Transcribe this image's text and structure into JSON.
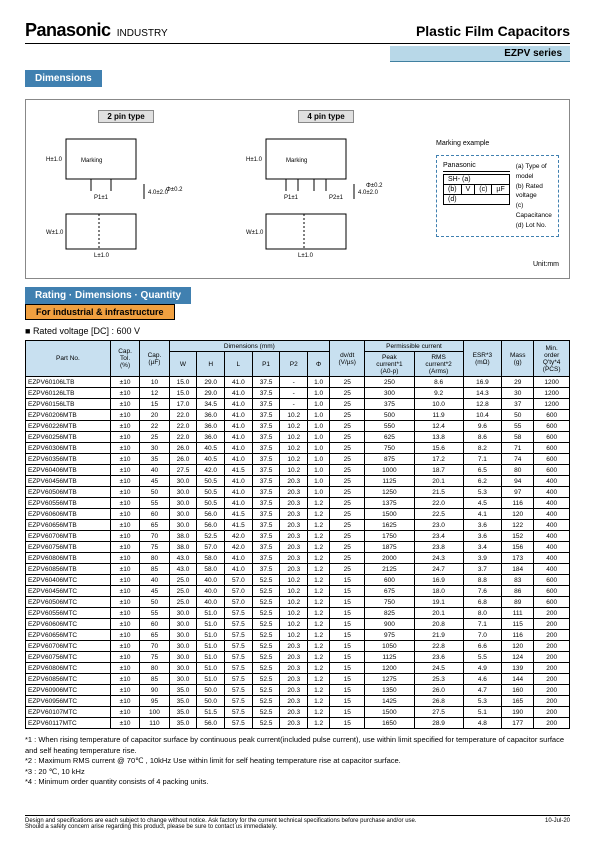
{
  "brand": "Panasonic",
  "brandSub": "INDUSTRY",
  "title": "Plastic Film Capacitors",
  "series": "EZPV series",
  "secDimensions": "Dimensions",
  "pin2": "2 pin type",
  "pin4": "4 pin type",
  "marking": "Marking",
  "markingExample": "Marking example",
  "markingBrand": "Panasonic",
  "markingSH": "SH-",
  "markingA": "(a)",
  "markingB": "(b)",
  "markingV": "V",
  "markingC": "(c)",
  "markingUF": "µF",
  "markingD": "(d)",
  "legendA": "(a) Type of model",
  "legendB": "(b) Rated voltage",
  "legendC": "(c) Capacitance",
  "legendD": "(d) Lot No.",
  "unitMm": "Unit:mm",
  "secRating": "Rating · Dimensions · Quantity",
  "subIndustrial": "For industrial & infrastructure",
  "ratedVoltage": "Rated voltage [DC] : 600 V",
  "headers": {
    "partNo": "Part No.",
    "capTol": "Cap.\nTol.\n(%)",
    "cap": "Cap.\n(µF)",
    "dims": "Dimensions (mm)",
    "w": "W",
    "h": "H",
    "l": "L",
    "p1": "P1",
    "p2": "P2",
    "phi": "Φ",
    "dvdt": "dv/dt\n(V/µs)",
    "perm": "Permissible current",
    "peak": "Peak\ncurrent*1\n(A0-p)",
    "rms": "RMS\ncurrent*2\n(Arms)",
    "esr": "ESR*3\n(mΩ)",
    "mass": "Mass\n(g)",
    "qty": "Min.\norder\nQ'ty*4\n(PCS)"
  },
  "rows": [
    [
      "EZPV60106LTB",
      "±10",
      "10",
      "15.0",
      "29.0",
      "41.0",
      "37.5",
      "-",
      "1.0",
      "25",
      "250",
      "8.6",
      "16.9",
      "29",
      "1200"
    ],
    [
      "EZPV60126LTB",
      "±10",
      "12",
      "15.0",
      "29.0",
      "41.0",
      "37.5",
      "-",
      "1.0",
      "25",
      "300",
      "9.2",
      "14.3",
      "30",
      "1200"
    ],
    [
      "EZPV60156LTB",
      "±10",
      "15",
      "17.0",
      "34.5",
      "41.0",
      "37.5",
      "-",
      "1.0",
      "25",
      "375",
      "10.0",
      "12.8",
      "37",
      "1200"
    ],
    [
      "EZPV60206MTB",
      "±10",
      "20",
      "22.0",
      "36.0",
      "41.0",
      "37.5",
      "10.2",
      "1.0",
      "25",
      "500",
      "11.9",
      "10.4",
      "50",
      "600"
    ],
    [
      "EZPV60226MTB",
      "±10",
      "22",
      "22.0",
      "36.0",
      "41.0",
      "37.5",
      "10.2",
      "1.0",
      "25",
      "550",
      "12.4",
      "9.6",
      "55",
      "600"
    ],
    [
      "EZPV60256MTB",
      "±10",
      "25",
      "22.0",
      "36.0",
      "41.0",
      "37.5",
      "10.2",
      "1.0",
      "25",
      "625",
      "13.8",
      "8.6",
      "58",
      "600"
    ],
    [
      "EZPV60306MTB",
      "±10",
      "30",
      "26.0",
      "40.5",
      "41.0",
      "37.5",
      "10.2",
      "1.0",
      "25",
      "750",
      "15.6",
      "8.2",
      "71",
      "600"
    ],
    [
      "EZPV60356MTB",
      "±10",
      "35",
      "26.0",
      "40.5",
      "41.0",
      "37.5",
      "10.2",
      "1.0",
      "25",
      "875",
      "17.2",
      "7.1",
      "74",
      "600"
    ],
    [
      "EZPV60406MTB",
      "±10",
      "40",
      "27.5",
      "42.0",
      "41.5",
      "37.5",
      "10.2",
      "1.0",
      "25",
      "1000",
      "18.7",
      "6.5",
      "80",
      "600"
    ],
    [
      "EZPV60456MTB",
      "±10",
      "45",
      "30.0",
      "50.5",
      "41.0",
      "37.5",
      "20.3",
      "1.0",
      "25",
      "1125",
      "20.1",
      "6.2",
      "94",
      "400"
    ],
    [
      "EZPV60506MTB",
      "±10",
      "50",
      "30.0",
      "50.5",
      "41.0",
      "37.5",
      "20.3",
      "1.0",
      "25",
      "1250",
      "21.5",
      "5.3",
      "97",
      "400"
    ],
    [
      "EZPV60556MTB",
      "±10",
      "55",
      "30.0",
      "50.5",
      "41.0",
      "37.5",
      "20.3",
      "1.2",
      "25",
      "1375",
      "22.0",
      "4.5",
      "116",
      "400"
    ],
    [
      "EZPV60606MTB",
      "±10",
      "60",
      "30.0",
      "56.0",
      "41.5",
      "37.5",
      "20.3",
      "1.2",
      "25",
      "1500",
      "22.5",
      "4.1",
      "120",
      "400"
    ],
    [
      "EZPV60656MTB",
      "±10",
      "65",
      "30.0",
      "56.0",
      "41.5",
      "37.5",
      "20.3",
      "1.2",
      "25",
      "1625",
      "23.0",
      "3.6",
      "122",
      "400"
    ],
    [
      "EZPV60706MTB",
      "±10",
      "70",
      "38.0",
      "52.5",
      "42.0",
      "37.5",
      "20.3",
      "1.2",
      "25",
      "1750",
      "23.4",
      "3.6",
      "152",
      "400"
    ],
    [
      "EZPV60756MTB",
      "±10",
      "75",
      "38.0",
      "57.0",
      "42.0",
      "37.5",
      "20.3",
      "1.2",
      "25",
      "1875",
      "23.8",
      "3.4",
      "156",
      "400"
    ],
    [
      "EZPV60806MTB",
      "±10",
      "80",
      "43.0",
      "58.0",
      "41.0",
      "37.5",
      "20.3",
      "1.2",
      "25",
      "2000",
      "24.3",
      "3.9",
      "173",
      "400"
    ],
    [
      "EZPV60856MTB",
      "±10",
      "85",
      "43.0",
      "58.0",
      "41.0",
      "37.5",
      "20.3",
      "1.2",
      "25",
      "2125",
      "24.7",
      "3.7",
      "184",
      "400"
    ],
    [
      "EZPV60406MTC",
      "±10",
      "40",
      "25.0",
      "40.0",
      "57.0",
      "52.5",
      "10.2",
      "1.2",
      "15",
      "600",
      "16.9",
      "8.8",
      "83",
      "600"
    ],
    [
      "EZPV60456MTC",
      "±10",
      "45",
      "25.0",
      "40.0",
      "57.0",
      "52.5",
      "10.2",
      "1.2",
      "15",
      "675",
      "18.0",
      "7.6",
      "86",
      "600"
    ],
    [
      "EZPV60506MTC",
      "±10",
      "50",
      "25.0",
      "40.0",
      "57.0",
      "52.5",
      "10.2",
      "1.2",
      "15",
      "750",
      "19.1",
      "6.8",
      "89",
      "600"
    ],
    [
      "EZPV60556MTC",
      "±10",
      "55",
      "30.0",
      "51.0",
      "57.5",
      "52.5",
      "10.2",
      "1.2",
      "15",
      "825",
      "20.1",
      "8.0",
      "111",
      "200"
    ],
    [
      "EZPV60606MTC",
      "±10",
      "60",
      "30.0",
      "51.0",
      "57.5",
      "52.5",
      "10.2",
      "1.2",
      "15",
      "900",
      "20.8",
      "7.1",
      "115",
      "200"
    ],
    [
      "EZPV60656MTC",
      "±10",
      "65",
      "30.0",
      "51.0",
      "57.5",
      "52.5",
      "10.2",
      "1.2",
      "15",
      "975",
      "21.9",
      "7.0",
      "116",
      "200"
    ],
    [
      "EZPV60706MTC",
      "±10",
      "70",
      "30.0",
      "51.0",
      "57.5",
      "52.5",
      "20.3",
      "1.2",
      "15",
      "1050",
      "22.8",
      "6.6",
      "120",
      "200"
    ],
    [
      "EZPV60756MTC",
      "±10",
      "75",
      "30.0",
      "51.0",
      "57.5",
      "52.5",
      "20.3",
      "1.2",
      "15",
      "1125",
      "23.6",
      "5.5",
      "124",
      "200"
    ],
    [
      "EZPV60806MTC",
      "±10",
      "80",
      "30.0",
      "51.0",
      "57.5",
      "52.5",
      "20.3",
      "1.2",
      "15",
      "1200",
      "24.5",
      "4.9",
      "139",
      "200"
    ],
    [
      "EZPV60856MTC",
      "±10",
      "85",
      "30.0",
      "51.0",
      "57.5",
      "52.5",
      "20.3",
      "1.2",
      "15",
      "1275",
      "25.3",
      "4.6",
      "144",
      "200"
    ],
    [
      "EZPV60906MTC",
      "±10",
      "90",
      "35.0",
      "50.0",
      "57.5",
      "52.5",
      "20.3",
      "1.2",
      "15",
      "1350",
      "26.0",
      "4.7",
      "160",
      "200"
    ],
    [
      "EZPV60956MTC",
      "±10",
      "95",
      "35.0",
      "50.0",
      "57.5",
      "52.5",
      "20.3",
      "1.2",
      "15",
      "1425",
      "26.8",
      "5.3",
      "165",
      "200"
    ],
    [
      "EZPV60107MTC",
      "±10",
      "100",
      "35.0",
      "51.5",
      "57.5",
      "52.5",
      "20.3",
      "1.2",
      "15",
      "1500",
      "27.5",
      "5.1",
      "190",
      "200"
    ],
    [
      "EZPV60117MTC",
      "±10",
      "110",
      "35.0",
      "56.0",
      "57.5",
      "52.5",
      "20.3",
      "1.2",
      "15",
      "1650",
      "28.9",
      "4.8",
      "177",
      "200"
    ]
  ],
  "note1": "*1 : When rising temperature of capacitor surface by continuous peak current(included pulse current), use within limit specified for temperature of capacitor surface and self heating temperature rise.",
  "note2": "*2 : Maximum RMS current @ 70℃ , 10kHz      Use within limit for self heating temperature rise at capacitor surface.",
  "note3": "*3 : 20 ℃,  10 kHz",
  "note4": "*4 : Minimum order quantity consists of 4 packing units.",
  "disclaimer1": "Design and specifications are each subject to change without notice. Ask factory for the current technical specifications before purchase and/or use.",
  "disclaimer2": "Should a safety concern arise regarding this product, please be sure to contact us immediately.",
  "date": "10-Jul-20"
}
